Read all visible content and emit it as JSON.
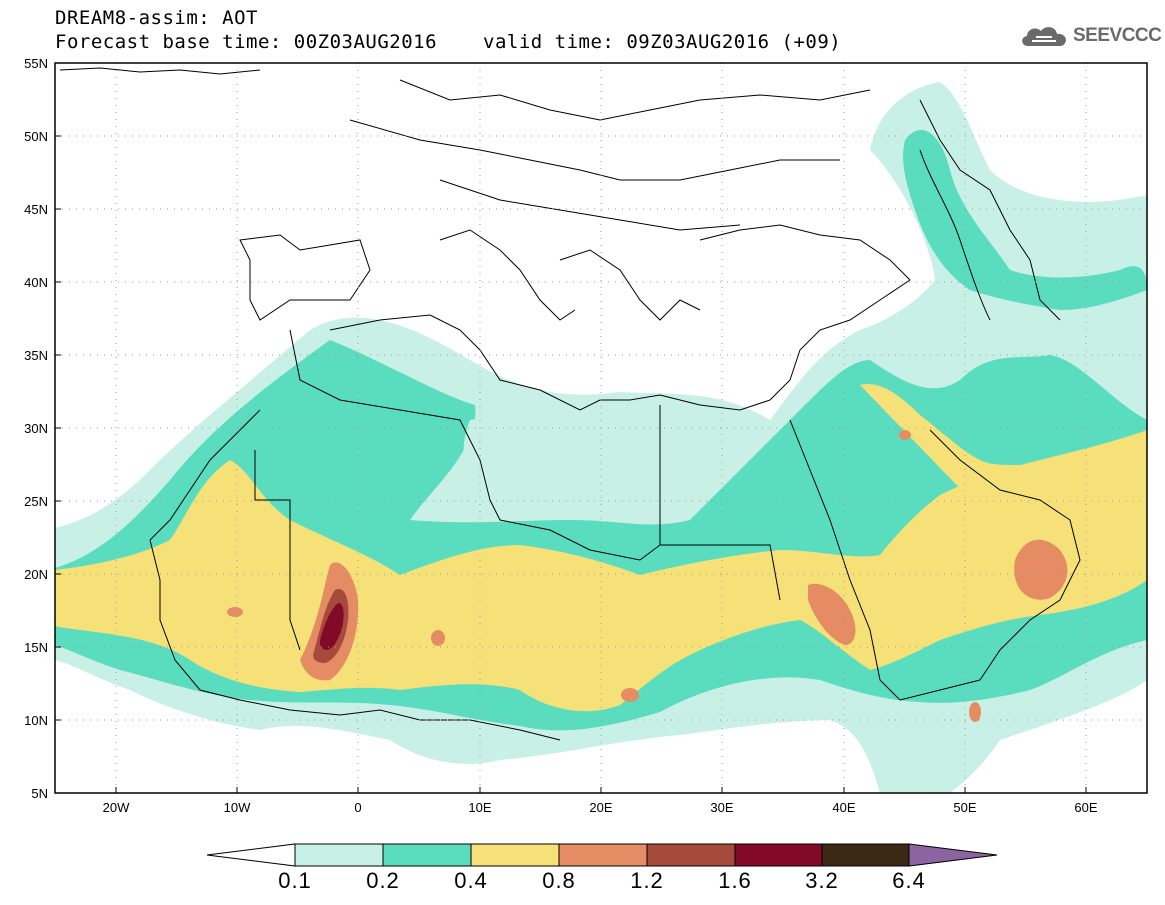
{
  "header": {
    "line1": "DREAM8-assim: AOT",
    "base_time": "Forecast base time: 00Z03AUG2016",
    "valid_time": "valid time: 09Z03AUG2016 (+09)"
  },
  "logo": {
    "text": "SEEVCCC",
    "icon": "cloud-icon"
  },
  "map": {
    "lat_labels": [
      "55N",
      "50N",
      "45N",
      "40N",
      "35N",
      "30N",
      "25N",
      "20N",
      "15N",
      "10N",
      "5N"
    ],
    "lon_labels": [
      "20W",
      "10W",
      "0",
      "10E",
      "20E",
      "30E",
      "40E",
      "50E",
      "60E"
    ],
    "lat_range": [
      5,
      55
    ],
    "lon_range": [
      -25,
      65
    ]
  },
  "colorbar": {
    "labels": [
      "0.1",
      "0.2",
      "0.4",
      "0.8",
      "1.2",
      "1.6",
      "3.2",
      "6.4"
    ],
    "colors": [
      "#ffffff",
      "#c8f0e6",
      "#5adcbe",
      "#f5e178",
      "#e68c64",
      "#a64a3c",
      "#820a28",
      "#3c2814",
      "#8c64a0"
    ]
  }
}
